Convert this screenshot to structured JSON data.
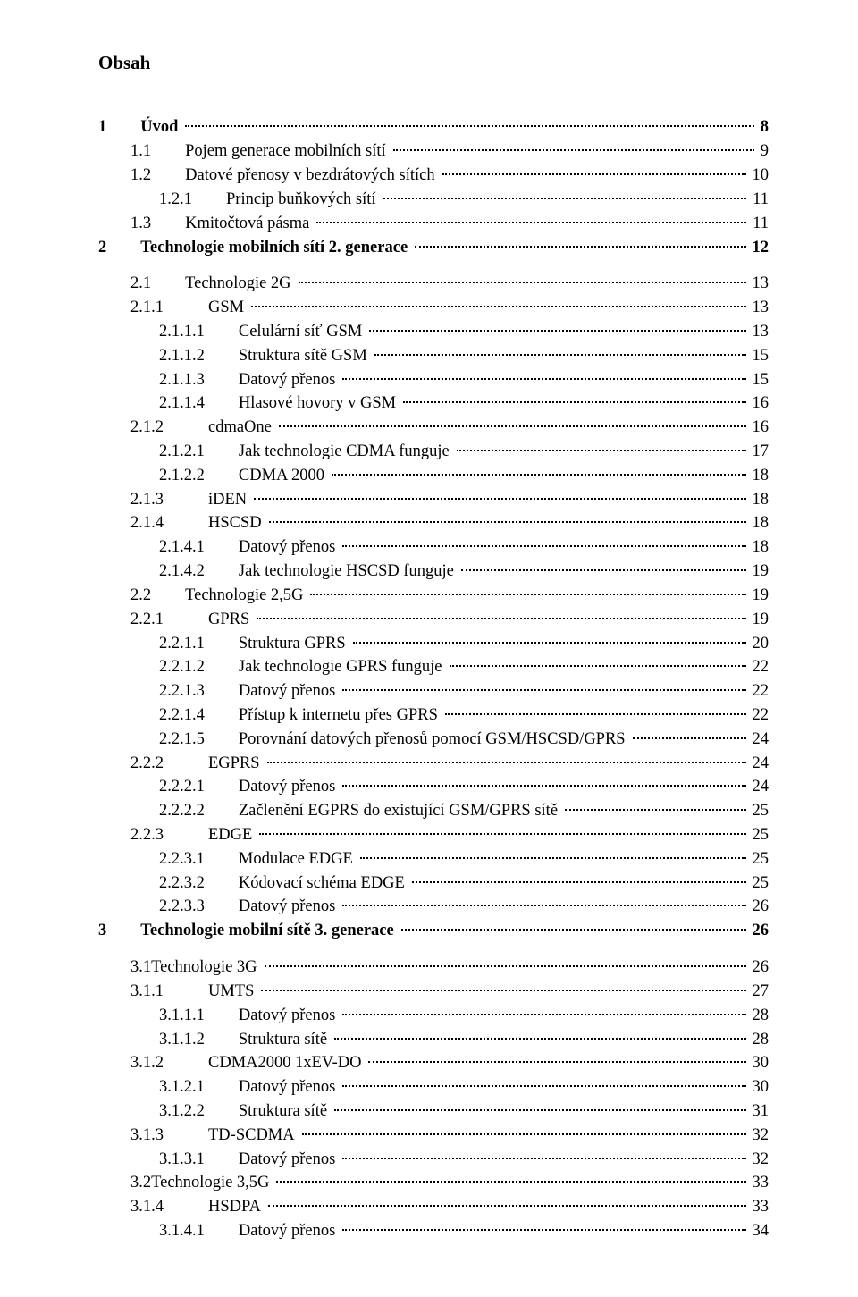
{
  "title": "Obsah",
  "entries": [
    {
      "level": 0,
      "bold": true,
      "num": "1",
      "gap": "gap-m",
      "label": "Úvod",
      "page": "8",
      "spaceBefore": true
    },
    {
      "level": 1,
      "num": "1.1",
      "gap": "gap-m",
      "label": "Pojem generace mobilních sítí",
      "page": "9"
    },
    {
      "level": 1,
      "num": "1.2",
      "gap": "gap-m",
      "label": "Datové přenosy v bezdrátových sítích",
      "page": "10"
    },
    {
      "level": 3,
      "num": "1.2.1",
      "gap": "gap-m",
      "label": "Princip buňkových sítí",
      "page": "11"
    },
    {
      "level": 1,
      "num": "1.3",
      "gap": "gap-m",
      "label": "Kmitočtová pásma",
      "page": "11"
    },
    {
      "level": 0,
      "bold": true,
      "num": "2",
      "gap": "gap-m",
      "label": "Technologie mobilních sítí 2. generace",
      "page": "12"
    },
    {
      "level": 1,
      "num": "2.1",
      "gap": "gap-m",
      "label": "Technologie 2G",
      "page": "13",
      "spaceBefore": true
    },
    {
      "level": 2,
      "num": "2.1.1",
      "gap": "gap-l",
      "label": "GSM",
      "page": "13"
    },
    {
      "level": 3,
      "num": "2.1.1.1",
      "gap": "gap-m",
      "label": "Celulární síť GSM",
      "page": "13"
    },
    {
      "level": 3,
      "num": "2.1.1.2",
      "gap": "gap-m",
      "label": "Struktura sítě GSM",
      "page": "15"
    },
    {
      "level": 3,
      "num": "2.1.1.3",
      "gap": "gap-m",
      "label": "Datový přenos",
      "page": "15"
    },
    {
      "level": 3,
      "num": "2.1.1.4",
      "gap": "gap-m",
      "label": "Hlasové hovory v GSM",
      "page": "16"
    },
    {
      "level": 2,
      "num": "2.1.2",
      "gap": "gap-l",
      "label": "cdmaOne",
      "page": "16"
    },
    {
      "level": 3,
      "num": "2.1.2.1",
      "gap": "gap-m",
      "label": "Jak technologie CDMA funguje",
      "page": "17"
    },
    {
      "level": 3,
      "num": "2.1.2.2",
      "gap": "gap-m",
      "label": "CDMA 2000",
      "page": "18"
    },
    {
      "level": 2,
      "num": "2.1.3",
      "gap": "gap-l",
      "label": "iDEN",
      "page": "18"
    },
    {
      "level": 2,
      "num": "2.1.4",
      "gap": "gap-l",
      "label": "HSCSD",
      "page": "18"
    },
    {
      "level": 3,
      "num": "2.1.4.1",
      "gap": "gap-m",
      "label": "Datový přenos",
      "page": "18"
    },
    {
      "level": 3,
      "num": "2.1.4.2",
      "gap": "gap-m",
      "label": "Jak technologie HSCSD funguje",
      "page": "19"
    },
    {
      "level": 1,
      "num": "2.2",
      "gap": "gap-m",
      "label": "Technologie 2,5G",
      "page": "19"
    },
    {
      "level": 2,
      "num": "2.2.1",
      "gap": "gap-l",
      "label": "GPRS",
      "page": "19"
    },
    {
      "level": 3,
      "num": "2.2.1.1",
      "gap": "gap-m",
      "label": "Struktura GPRS",
      "page": "20"
    },
    {
      "level": 3,
      "num": "2.2.1.2",
      "gap": "gap-m",
      "label": "Jak technologie GPRS funguje",
      "page": "22"
    },
    {
      "level": 3,
      "num": "2.2.1.3",
      "gap": "gap-m",
      "label": "Datový přenos",
      "page": "22"
    },
    {
      "level": 3,
      "num": "2.2.1.4",
      "gap": "gap-m",
      "label": "Přístup k internetu přes GPRS",
      "page": "22"
    },
    {
      "level": 3,
      "num": "2.2.1.5",
      "gap": "gap-m",
      "label": "Porovnání datových přenosů pomocí GSM/HSCSD/GPRS",
      "page": "24"
    },
    {
      "level": 2,
      "num": "2.2.2",
      "gap": "gap-l",
      "label": "EGPRS",
      "page": "24"
    },
    {
      "level": 3,
      "num": "2.2.2.1",
      "gap": "gap-m",
      "label": "Datový přenos",
      "page": "24"
    },
    {
      "level": 3,
      "num": "2.2.2.2",
      "gap": "gap-m",
      "label": "Začlenění EGPRS do existující GSM/GPRS sítě",
      "page": "25"
    },
    {
      "level": 2,
      "num": "2.2.3",
      "gap": "gap-l",
      "label": "EDGE",
      "page": "25"
    },
    {
      "level": 3,
      "num": "2.2.3.1",
      "gap": "gap-m",
      "label": "Modulace EDGE",
      "page": "25"
    },
    {
      "level": 3,
      "num": "2.2.3.2",
      "gap": "gap-m",
      "label": "Kódovací schéma EDGE",
      "page": "25"
    },
    {
      "level": 3,
      "num": "2.2.3.3",
      "gap": "gap-m",
      "label": "Datový přenos",
      "page": "26"
    },
    {
      "level": 0,
      "bold": true,
      "num": "3",
      "gap": "gap-m",
      "label": "Technologie mobilní sítě 3. generace",
      "page": "26"
    },
    {
      "level": 1,
      "num": "3.1",
      "gap": "gap-s",
      "label": "Technologie 3G",
      "page": "26",
      "spaceBefore": true,
      "noNumGap": true
    },
    {
      "level": 2,
      "num": "3.1.1",
      "gap": "gap-l",
      "label": "UMTS",
      "page": "27"
    },
    {
      "level": 3,
      "num": "3.1.1.1",
      "gap": "gap-m",
      "label": "Datový přenos",
      "page": "28"
    },
    {
      "level": 3,
      "num": "3.1.1.2",
      "gap": "gap-m",
      "label": "Struktura sítě",
      "page": "28"
    },
    {
      "level": 2,
      "num": "3.1.2",
      "gap": "gap-l",
      "label": "CDMA2000 1xEV-DO",
      "page": "30"
    },
    {
      "level": 3,
      "num": "3.1.2.1",
      "gap": "gap-m",
      "label": "Datový přenos",
      "page": "30"
    },
    {
      "level": 3,
      "num": "3.1.2.2",
      "gap": "gap-m",
      "label": "Struktura sítě",
      "page": "31"
    },
    {
      "level": 2,
      "num": "3.1.3",
      "gap": "gap-l",
      "label": "TD-SCDMA",
      "page": "32"
    },
    {
      "level": 3,
      "num": "3.1.3.1",
      "gap": "gap-m",
      "label": "Datový přenos",
      "page": "32"
    },
    {
      "level": 1,
      "num": "3.2",
      "gap": "gap-s",
      "label": "Technologie 3,5G",
      "page": "33",
      "noNumGap": true
    },
    {
      "level": 2,
      "num": "3.1.4",
      "gap": "gap-l",
      "label": "HSDPA",
      "page": "33"
    },
    {
      "level": 3,
      "num": "3.1.4.1",
      "gap": "gap-m",
      "label": "Datový přenos",
      "page": "34"
    }
  ]
}
